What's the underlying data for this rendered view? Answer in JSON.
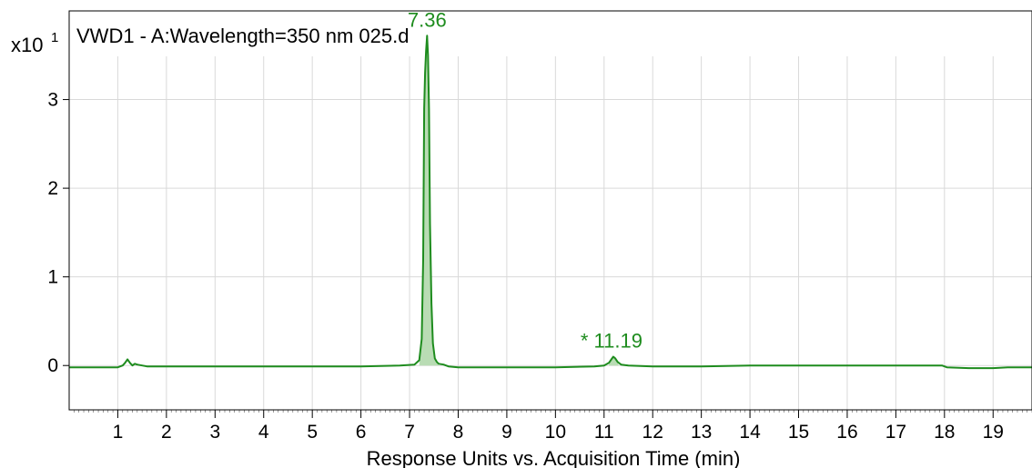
{
  "chart_data": {
    "type": "line",
    "title": "VWD1 - A:Wavelength=350 nm 025.d",
    "xlabel": "Response Units vs. Acquisition Time (min)",
    "ylabel": "",
    "y_multiplier_label": "x10",
    "y_multiplier_exponent": "1",
    "xlim": [
      0.0,
      19.8
    ],
    "ylim": [
      -0.5,
      4.0
    ],
    "x_ticks": [
      1,
      2,
      3,
      4,
      5,
      6,
      7,
      8,
      9,
      10,
      11,
      12,
      13,
      14,
      15,
      16,
      17,
      18,
      19
    ],
    "y_ticks": [
      0,
      1,
      2,
      3
    ],
    "grid": true,
    "colors": {
      "trace": "#1e8c1e",
      "fill": "#b9dcb4",
      "grid": "#d9d9d9",
      "axis": "#000000"
    },
    "series": [
      {
        "x": [
          0.0,
          1.0,
          1.1,
          1.15,
          1.2,
          1.25,
          1.3,
          1.35,
          1.4,
          1.6,
          2.0,
          3.0,
          4.0,
          5.0,
          6.0,
          6.8,
          7.1,
          7.2,
          7.25,
          7.28,
          7.3,
          7.32,
          7.34,
          7.36,
          7.38,
          7.4,
          7.42,
          7.45,
          7.48,
          7.52,
          7.56,
          7.6,
          7.7,
          7.8,
          8.0,
          9.0,
          10.0,
          10.8,
          11.0,
          11.1,
          11.15,
          11.19,
          11.23,
          11.28,
          11.35,
          11.5,
          12.0,
          13.0,
          14.0,
          15.0,
          16.0,
          17.0,
          17.95,
          18.05,
          18.5,
          19.0,
          19.3,
          19.8
        ],
        "y": [
          -0.02,
          -0.02,
          0.0,
          0.03,
          0.07,
          0.03,
          0.0,
          0.02,
          0.01,
          -0.01,
          -0.01,
          -0.01,
          -0.01,
          -0.01,
          -0.01,
          0.0,
          0.01,
          0.06,
          0.3,
          1.2,
          2.9,
          3.3,
          3.55,
          3.72,
          3.5,
          2.9,
          1.6,
          0.7,
          0.25,
          0.08,
          0.04,
          0.02,
          0.01,
          -0.01,
          -0.02,
          -0.02,
          -0.02,
          -0.01,
          0.0,
          0.03,
          0.07,
          0.1,
          0.08,
          0.04,
          0.01,
          0.0,
          -0.01,
          -0.01,
          0.0,
          0.0,
          0.0,
          0.0,
          0.0,
          -0.02,
          -0.03,
          -0.03,
          -0.02,
          -0.02
        ]
      }
    ],
    "annotations": [
      {
        "text": "7.36",
        "x": 7.36,
        "y": 3.72
      },
      {
        "text": "* 11.19",
        "x": 11.19,
        "y": 0.1
      }
    ]
  }
}
